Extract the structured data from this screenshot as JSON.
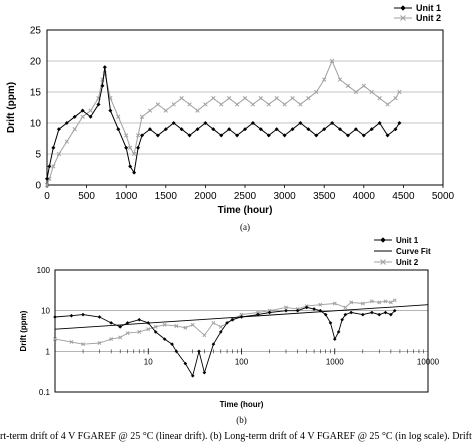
{
  "chart_data": [
    {
      "type": "line",
      "ylabel": "Drift (ppm)",
      "xlabel": "Time (hour)",
      "sublabel": "(a)",
      "xlim": [
        0,
        5000
      ],
      "ylim": [
        0,
        25
      ],
      "xticks": [
        "0",
        "500",
        "1000",
        "1500",
        "2000",
        "2500",
        "3000",
        "3500",
        "4000",
        "4500",
        "5000"
      ],
      "yticks": [
        "0",
        "5",
        "10",
        "15",
        "20",
        "25"
      ],
      "legend_position": "top-right",
      "grid": "horizontal",
      "series": [
        {
          "name": "Unit 1",
          "color": "#000000",
          "marker": "diamond",
          "x": [
            0,
            30,
            80,
            150,
            250,
            350,
            450,
            550,
            650,
            700,
            730,
            800,
            900,
            1000,
            1050,
            1100,
            1150,
            1200,
            1300,
            1400,
            1500,
            1600,
            1700,
            1800,
            1900,
            2000,
            2100,
            2200,
            2300,
            2400,
            2500,
            2600,
            2700,
            2800,
            2900,
            3000,
            3100,
            3200,
            3300,
            3400,
            3500,
            3600,
            3700,
            3800,
            3900,
            4000,
            4100,
            4200,
            4300,
            4400,
            4450
          ],
          "y": [
            1,
            3,
            6,
            9,
            10,
            11,
            12,
            11,
            13,
            16,
            19,
            12,
            9,
            6,
            3,
            2,
            6,
            8,
            9,
            8,
            9,
            10,
            9,
            8,
            9,
            10,
            9,
            8,
            9,
            8,
            9,
            10,
            9,
            8,
            9,
            8,
            9,
            10,
            9,
            8,
            9,
            10,
            9,
            8,
            9,
            8,
            9,
            10,
            8,
            9,
            10
          ]
        },
        {
          "name": "Unit 2",
          "color": "#a0a0a0",
          "marker": "x",
          "x": [
            0,
            30,
            80,
            150,
            250,
            350,
            450,
            550,
            650,
            700,
            730,
            800,
            900,
            1000,
            1050,
            1100,
            1150,
            1200,
            1300,
            1400,
            1500,
            1600,
            1700,
            1800,
            1900,
            2000,
            2100,
            2200,
            2300,
            2400,
            2500,
            2600,
            2700,
            2800,
            2900,
            3000,
            3100,
            3200,
            3300,
            3400,
            3500,
            3600,
            3700,
            3800,
            3900,
            4000,
            4100,
            4200,
            4300,
            4400,
            4450
          ],
          "y": [
            0,
            1,
            3,
            5,
            7,
            9,
            11,
            12,
            14,
            17,
            18,
            14,
            11,
            8,
            6,
            5,
            8,
            11,
            12,
            13,
            12,
            13,
            14,
            13,
            12,
            13,
            14,
            13,
            14,
            13,
            14,
            13,
            14,
            13,
            14,
            13,
            14,
            13,
            14,
            15,
            17,
            20,
            17,
            16,
            15,
            16,
            15,
            14,
            13,
            14,
            15
          ]
        }
      ]
    },
    {
      "type": "scatter",
      "ylabel": "Drift (ppm)",
      "xlabel": "Time (hour)",
      "sublabel": "(b)",
      "xscale": "log",
      "yscale": "log",
      "xlim": [
        1,
        10000
      ],
      "ylim": [
        0.1,
        100
      ],
      "xticks": [
        {
          "value": 1,
          "label": "1"
        },
        {
          "value": 10,
          "label": "10"
        },
        {
          "value": 100,
          "label": "100"
        },
        {
          "value": 1000,
          "label": "1000"
        },
        {
          "value": 10000,
          "label": "10000"
        }
      ],
      "yticks": [
        {
          "value": 0.1,
          "label": "0.1"
        },
        {
          "value": 1,
          "label": "1"
        },
        {
          "value": 10,
          "label": "10"
        },
        {
          "value": 100,
          "label": "100"
        }
      ],
      "legend_position": "top-right",
      "grid": "horizontal",
      "series": [
        {
          "name": "Unit 1",
          "color": "#000000",
          "marker": "diamond",
          "x": [
            1,
            1.5,
            2,
            3,
            4,
            5,
            6,
            8,
            10,
            12,
            15,
            18,
            20,
            25,
            30,
            35,
            40,
            50,
            60,
            70,
            80,
            100,
            150,
            200,
            300,
            400,
            500,
            600,
            700,
            800,
            900,
            1000,
            1100,
            1200,
            1300,
            1500,
            2000,
            2500,
            3000,
            3500,
            4000,
            4400
          ],
          "y": [
            7,
            7.5,
            8,
            7,
            5,
            4,
            5,
            6,
            5,
            3,
            2,
            1.5,
            1,
            0.5,
            0.25,
            1,
            0.3,
            1.5,
            3,
            5,
            6,
            7,
            8,
            9,
            10,
            10,
            12,
            11,
            10,
            8,
            5,
            2,
            3,
            6,
            8,
            9,
            8,
            9,
            8,
            9,
            8,
            10
          ]
        },
        {
          "name": "Curve Fit",
          "color": "#000000",
          "marker": "none",
          "x": [
            1,
            10000
          ],
          "y": [
            3.5,
            14
          ]
        },
        {
          "name": "Unit 2",
          "color": "#a0a0a0",
          "marker": "x",
          "x": [
            1,
            1.5,
            2,
            3,
            4,
            5,
            6,
            8,
            10,
            12,
            15,
            20,
            25,
            30,
            40,
            50,
            60,
            80,
            100,
            150,
            200,
            300,
            400,
            500,
            700,
            1000,
            1300,
            1500,
            2000,
            2500,
            3000,
            3500,
            4000,
            4400
          ],
          "y": [
            2,
            1.7,
            1.5,
            1.6,
            2,
            2.2,
            2.8,
            3,
            3.5,
            4,
            4.5,
            4.2,
            3.8,
            4.5,
            2.5,
            5,
            4,
            6,
            8,
            9,
            10,
            12,
            11,
            13,
            14,
            15,
            12,
            16,
            15,
            17,
            16,
            17,
            16,
            18
          ]
        }
      ]
    }
  ],
  "caption": "rt-term drift of 4 V FGAREF @ 25 °C (linear drift). (b) Long-term drift of 4 V FGAREF @ 25 °C (in log scale). Drift"
}
